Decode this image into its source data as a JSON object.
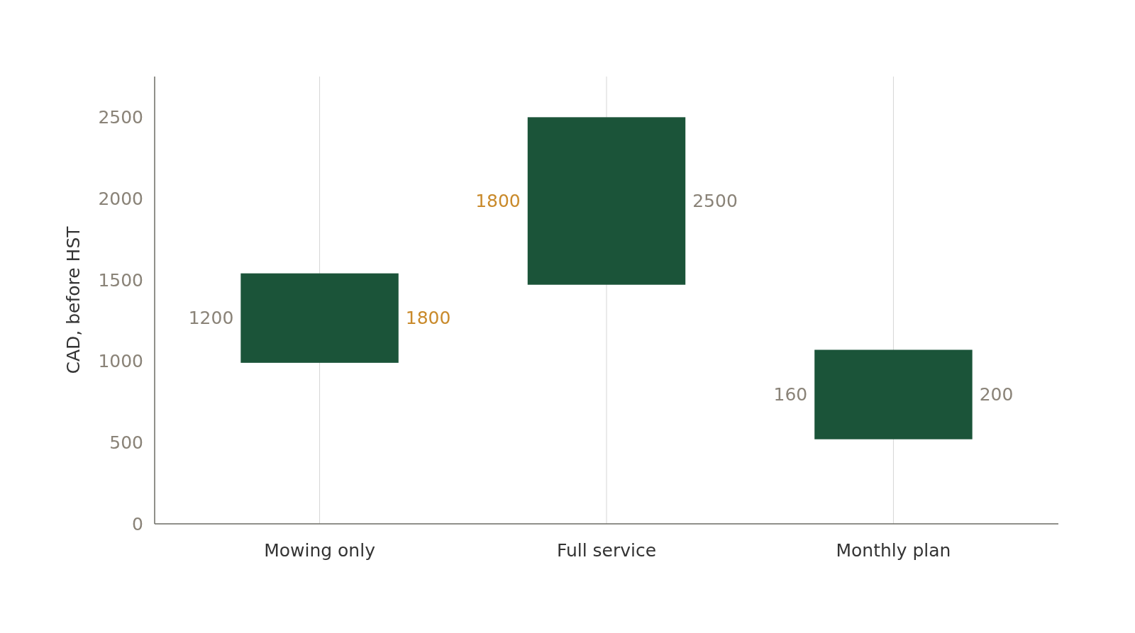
{
  "chart_data": {
    "type": "bar",
    "ylabel": "CAD, before HST",
    "categories": [
      "Mowing only",
      "Full service",
      "Monthly plan"
    ],
    "values": [
      550,
      1030,
      550
    ],
    "base": [
      990,
      1470,
      520
    ],
    "color": "#1b5439",
    "ylim": [
      0,
      2750
    ],
    "yticks": [
      0,
      500,
      1000,
      1500,
      2000,
      2500
    ],
    "grid": "x",
    "annotations": [
      "1200",
      "1800",
      "1800",
      "2500",
      "160",
      "200"
    ]
  }
}
